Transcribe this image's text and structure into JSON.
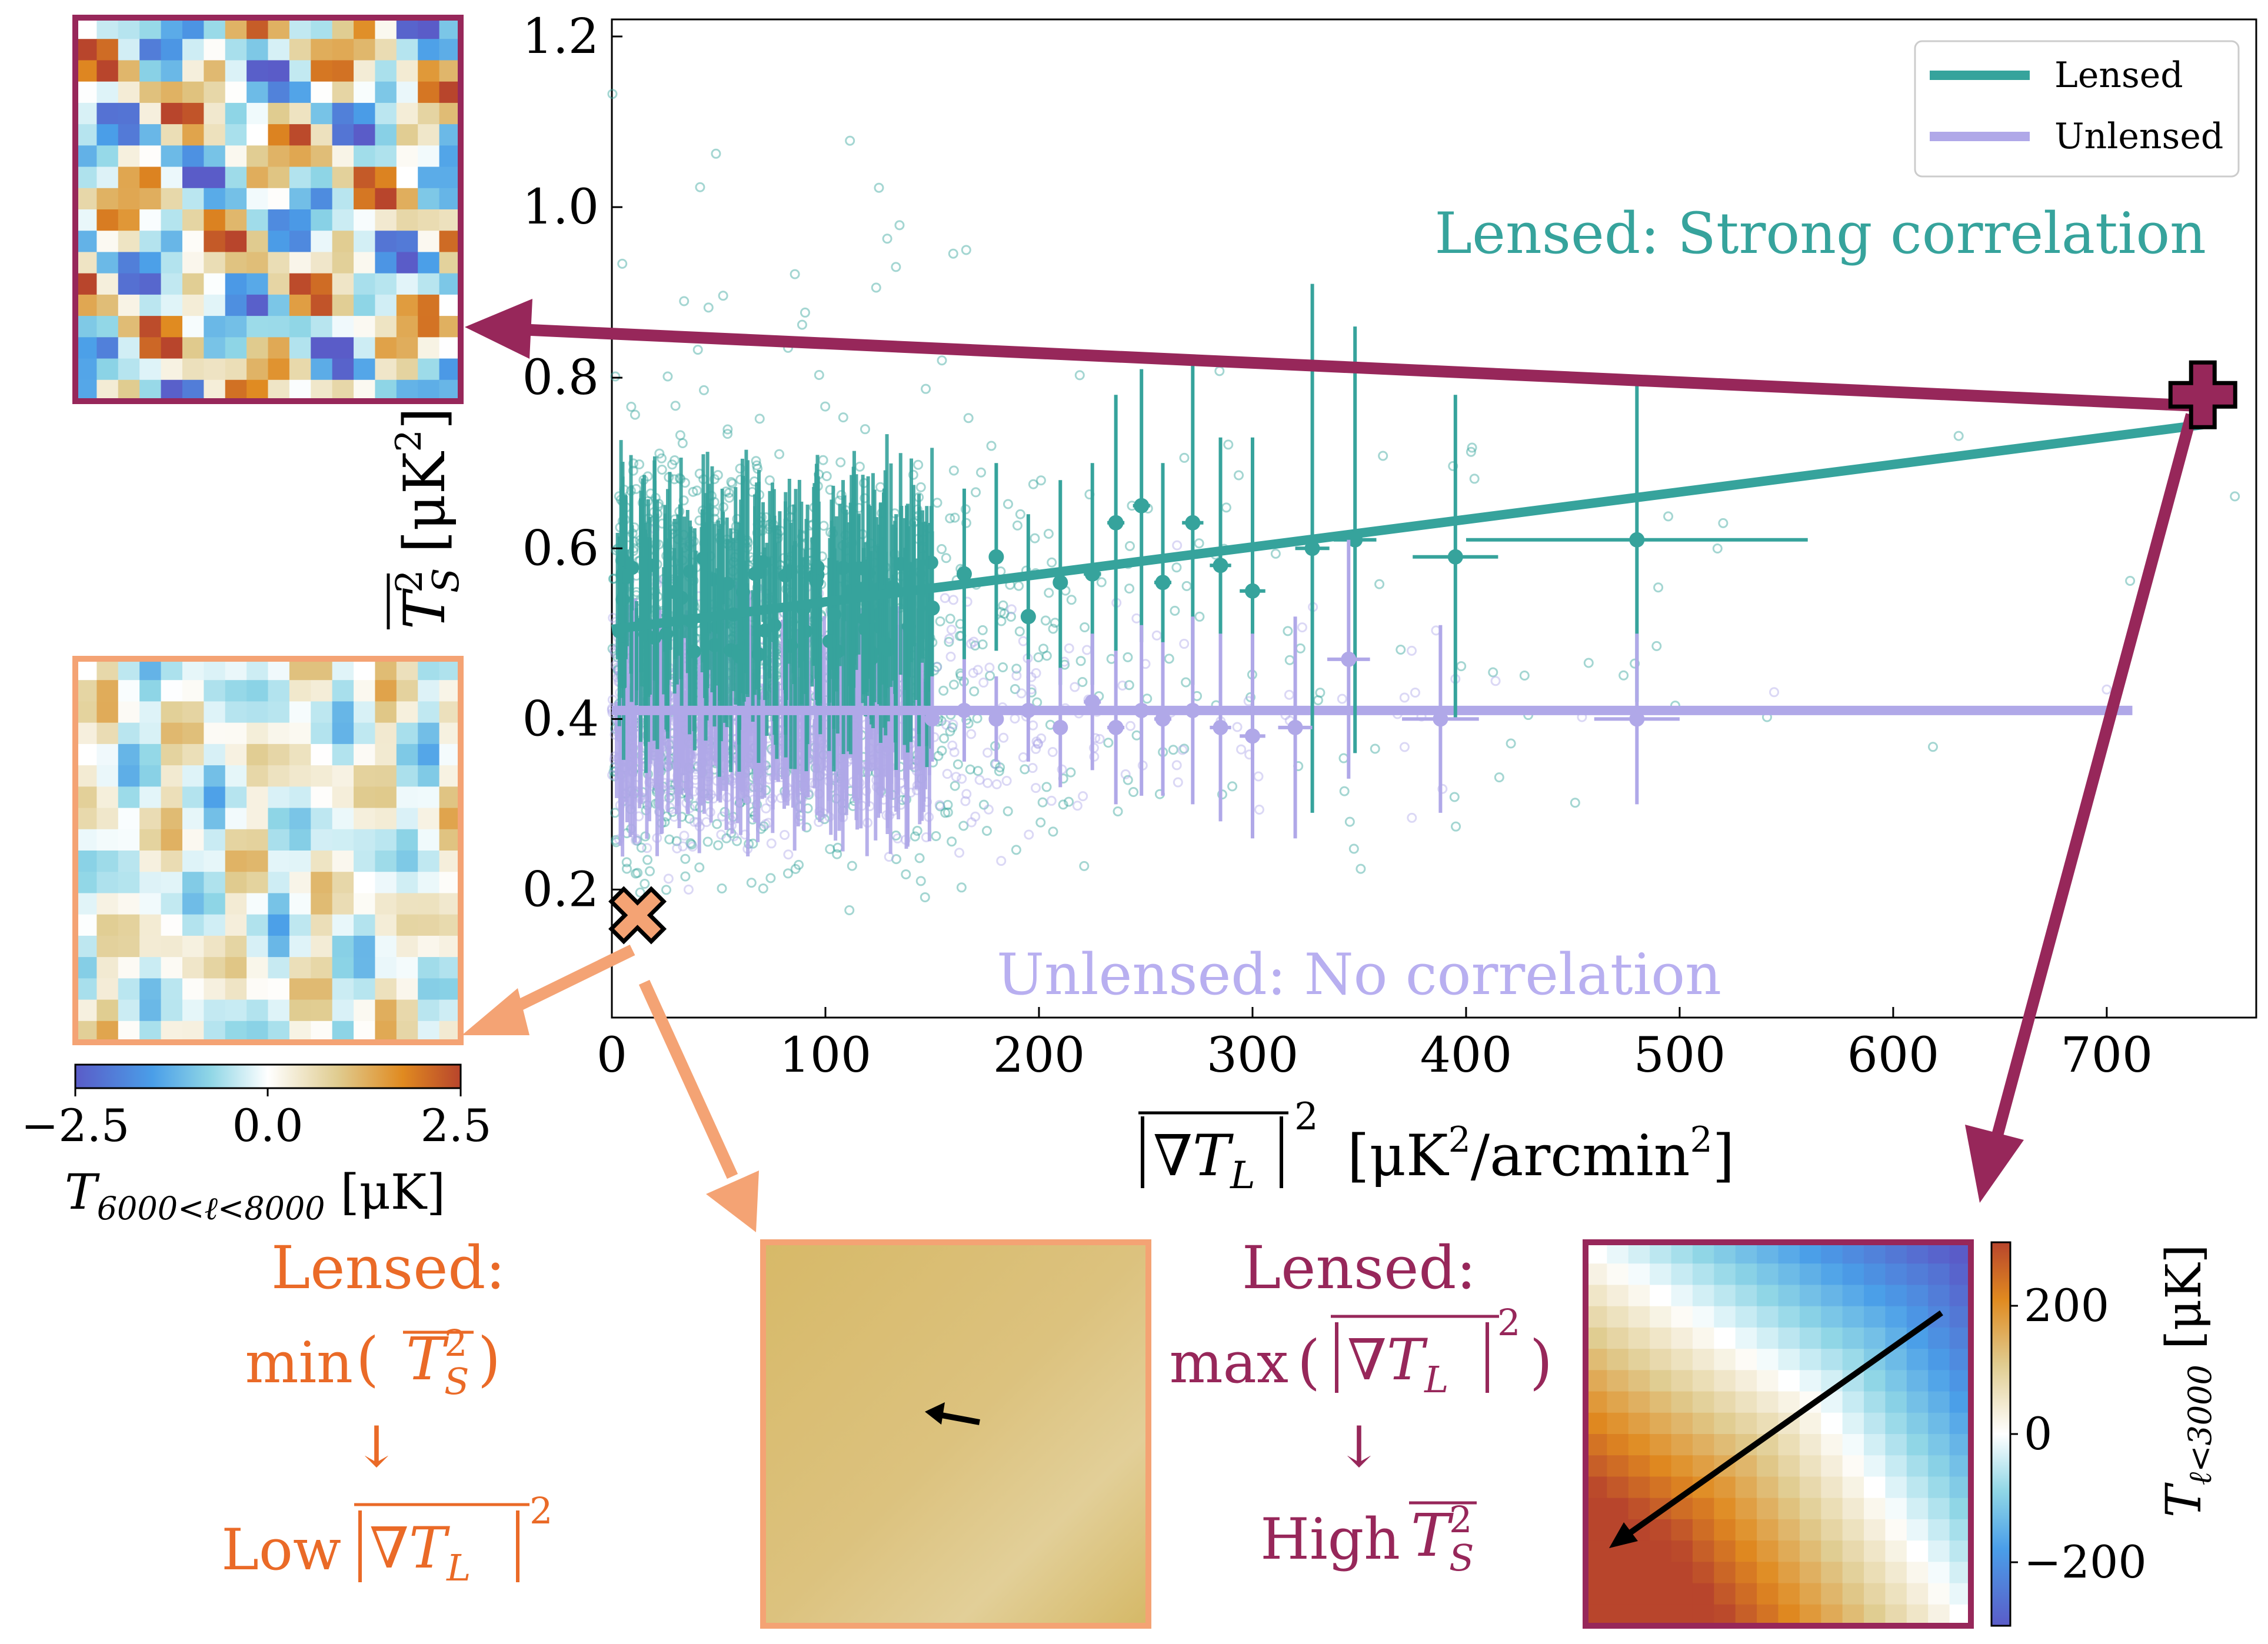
{
  "colors": {
    "lensed": "#36a39c",
    "unlensed": "#b0a8e8",
    "magenta": "#97275a",
    "orange": "#f4a374",
    "orange_text": "#ea6a27",
    "lensed_text": "#36a39c",
    "unlensed_text": "#b8aff0"
  },
  "chart_data": {
    "type": "scatter",
    "xlabel": "|∇T_L|² [μK²/arcmin²]",
    "ylabel": "T_S² [μK²]",
    "xlim": [
      0,
      770
    ],
    "ylim": [
      0.05,
      1.22
    ],
    "xticks": [
      0,
      100,
      200,
      300,
      400,
      500,
      600,
      700
    ],
    "yticks": [
      0.2,
      0.4,
      0.6,
      0.8,
      1.0,
      1.2
    ],
    "xtick_labels": [
      "0",
      "100",
      "200",
      "300",
      "400",
      "500",
      "600",
      "700"
    ],
    "ytick_labels": [
      "0.2",
      "0.4",
      "0.6",
      "0.8",
      "1.0",
      "1.2"
    ],
    "legend": {
      "position": "top-right",
      "entries": [
        "Lensed",
        "Unlensed"
      ]
    },
    "annotations": {
      "lensed": "Lensed: Strong correlation",
      "unlensed": "Unlensed: No correlation"
    },
    "fit_lines": [
      {
        "name": "Lensed",
        "x": [
          0,
          745
        ],
        "y": [
          0.505,
          0.745
        ]
      },
      {
        "name": "Unlensed",
        "x": [
          0,
          712
        ],
        "y": [
          0.41,
          0.41
        ]
      }
    ],
    "series": [
      {
        "name": "Lensed binned means",
        "x": [
          150,
          165,
          180,
          195,
          210,
          225,
          236,
          248,
          258,
          272,
          285,
          300,
          328,
          348,
          395,
          480
        ],
        "y": [
          0.53,
          0.57,
          0.59,
          0.52,
          0.56,
          0.57,
          0.63,
          0.65,
          0.56,
          0.63,
          0.58,
          0.55,
          0.6,
          0.61,
          0.59,
          0.61
        ],
        "xerr": [
          3,
          3,
          3,
          3,
          3,
          4,
          4,
          4,
          4,
          5,
          5,
          6,
          8,
          10,
          20,
          80
        ],
        "yerr": [
          0.09,
          0.1,
          0.11,
          0.12,
          0.12,
          0.13,
          0.15,
          0.16,
          0.14,
          0.19,
          0.15,
          0.18,
          0.31,
          0.25,
          0.19,
          0.19
        ]
      },
      {
        "name": "Unlensed binned means",
        "x": [
          150,
          165,
          180,
          195,
          210,
          225,
          236,
          248,
          258,
          272,
          285,
          300,
          320,
          345,
          388,
          480
        ],
        "y": [
          0.4,
          0.41,
          0.4,
          0.41,
          0.39,
          0.42,
          0.39,
          0.41,
          0.4,
          0.41,
          0.39,
          0.38,
          0.39,
          0.47,
          0.4,
          0.4
        ],
        "xerr": [
          3,
          3,
          3,
          3,
          3,
          4,
          4,
          4,
          4,
          5,
          5,
          6,
          8,
          10,
          18,
          20
        ],
        "yerr": [
          0.05,
          0.06,
          0.05,
          0.06,
          0.07,
          0.08,
          0.09,
          0.1,
          0.09,
          0.11,
          0.11,
          0.12,
          0.13,
          0.14,
          0.11,
          0.1
        ]
      }
    ],
    "markers": [
      {
        "name": "max-gradient",
        "symbol": "plus",
        "x": 745,
        "y": 0.78
      },
      {
        "name": "min-signal",
        "symbol": "cross",
        "x": 12,
        "y": 0.17
      }
    ],
    "colorbar_small": {
      "ticks": [
        "−2.5",
        "0.0",
        "2.5"
      ],
      "label": "T_{6000<ℓ<8000} [μK]"
    },
    "colorbar_large": {
      "ticks": [
        "200",
        "0",
        "−200"
      ],
      "label": "T_{ℓ<3000} [μK]"
    }
  },
  "captions": {
    "left": {
      "title": "Lensed:",
      "line2": "min",
      "arrow": "↓",
      "line4": "Low"
    },
    "right": {
      "title": "Lensed:",
      "line2": "max",
      "arrow": "↓",
      "line4": "High"
    }
  }
}
